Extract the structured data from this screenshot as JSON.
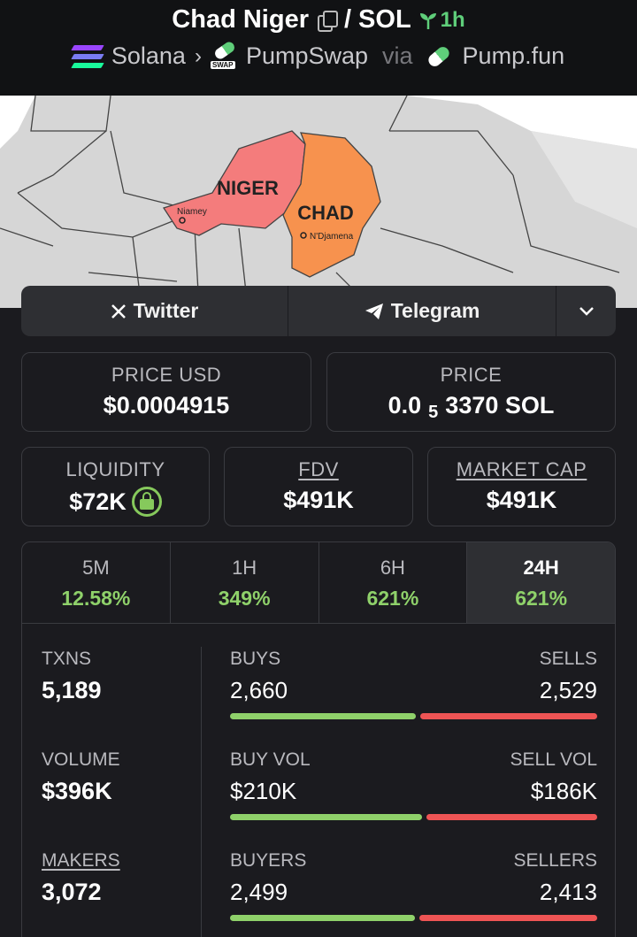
{
  "header": {
    "token_name": "Chad Niger",
    "separator": "/",
    "quote": "SOL",
    "age": "1h",
    "chain": "Solana",
    "dex": "PumpSwap",
    "via": "via",
    "launchpad": "Pump.fun",
    "swap_tag": "SWAP"
  },
  "banner": {
    "niger_label": "NIGER",
    "chad_label": "CHAD",
    "niamey_label": "Niamey",
    "ndjamena_label": "N'Djamena",
    "niger_color": "#f47c7c",
    "chad_color": "#f7924e"
  },
  "social": {
    "twitter": "Twitter",
    "telegram": "Telegram"
  },
  "price": {
    "usd_label": "PRICE USD",
    "usd_value": "$0.0004915",
    "native_label": "PRICE",
    "native_prefix": "0.0",
    "native_sub": "5",
    "native_suffix": "3370 SOL"
  },
  "metrics": {
    "liquidity_label": "LIQUIDITY",
    "liquidity_value": "$72K",
    "fdv_label": "FDV",
    "fdv_value": "$491K",
    "mcap_label": "MARKET CAP",
    "mcap_value": "$491K"
  },
  "periods": [
    {
      "label": "5M",
      "value": "12.58%"
    },
    {
      "label": "1H",
      "value": "349%"
    },
    {
      "label": "6H",
      "value": "621%"
    },
    {
      "label": "24H",
      "value": "621%"
    }
  ],
  "stats": {
    "txns_label": "TXNS",
    "txns_value": "5,189",
    "buys_label": "BUYS",
    "buys_value": "2,660",
    "sells_label": "SELLS",
    "sells_value": "2,529",
    "buys_fraction": 0.513,
    "volume_label": "VOLUME",
    "volume_value": "$396K",
    "buy_vol_label": "BUY VOL",
    "buy_vol_value": "$210K",
    "sell_vol_label": "SELL VOL",
    "sell_vol_value": "$186K",
    "buy_vol_fraction": 0.53,
    "makers_label": "MAKERS",
    "makers_value": "3,072",
    "buyers_label": "BUYERS",
    "buyers_value": "2,499",
    "sellers_label": "SELLERS",
    "sellers_value": "2,413",
    "buyers_fraction": 0.509
  },
  "colors": {
    "positive": "#8fd16a",
    "negative": "#ee5454",
    "age_green": "#5fce7a"
  }
}
